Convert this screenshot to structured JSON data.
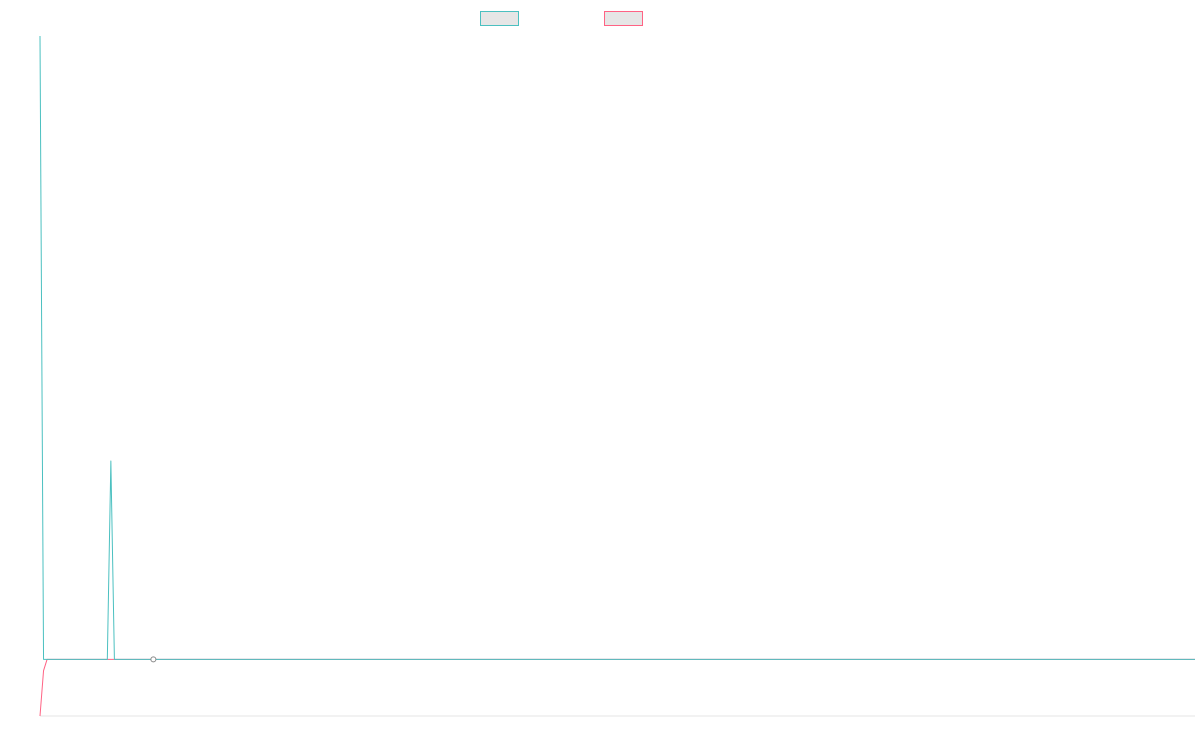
{
  "chart_data": {
    "type": "line",
    "title": "",
    "xlabel": "",
    "ylabel": "",
    "legend_position": "top-center",
    "grid": false,
    "xlim": [
      0,
      326
    ],
    "ylim": [
      -0.1,
      1.1
    ],
    "x": [
      0,
      1,
      2,
      3,
      4,
      5,
      6,
      7,
      8,
      9,
      10,
      11,
      12,
      13,
      14,
      15,
      16,
      17,
      18,
      19,
      20,
      21,
      22,
      23,
      24,
      25,
      26,
      27,
      28,
      29,
      30,
      31,
      32,
      33,
      34,
      35,
      36,
      37,
      38,
      39,
      40,
      41,
      42,
      43,
      44,
      45,
      46,
      47,
      48,
      49,
      50,
      60,
      70,
      80,
      90,
      100,
      120,
      140,
      160,
      180,
      200,
      220,
      240,
      260,
      280,
      300,
      326
    ],
    "series": [
      {
        "name": "",
        "color": "#4bc0c0",
        "values": [
          1.1,
          0,
          0,
          0,
          0,
          0,
          0,
          0,
          0,
          0,
          0,
          0,
          0,
          0,
          0,
          0,
          0,
          0,
          0,
          0,
          0.35,
          0,
          0,
          0,
          0,
          0,
          0,
          0,
          0,
          0,
          0,
          0,
          0,
          0,
          0,
          0,
          0,
          0,
          0,
          0,
          0,
          0,
          0,
          0,
          0,
          0,
          0,
          0,
          0,
          0,
          0,
          0,
          0,
          0,
          0,
          0,
          0,
          0,
          0,
          0,
          0,
          0,
          0,
          0,
          0,
          0,
          0
        ]
      },
      {
        "name": "",
        "color": "#ff6384",
        "values": [
          -0.1,
          -0.02,
          0,
          0,
          0,
          0,
          0,
          0,
          0,
          0,
          0,
          0,
          0,
          0,
          0,
          0,
          0,
          0,
          0,
          0,
          0,
          0,
          0,
          0,
          0,
          0,
          0,
          0,
          0,
          0,
          0,
          0,
          0,
          0,
          0,
          0,
          0,
          0,
          0,
          0,
          0,
          0,
          0,
          0,
          0,
          0,
          0,
          0,
          0,
          0,
          0,
          0,
          0,
          0,
          0,
          0,
          0,
          0,
          0,
          0,
          0,
          0,
          0,
          0,
          0,
          0,
          0
        ]
      }
    ],
    "point_marker": {
      "x": 32,
      "y": 0
    }
  }
}
